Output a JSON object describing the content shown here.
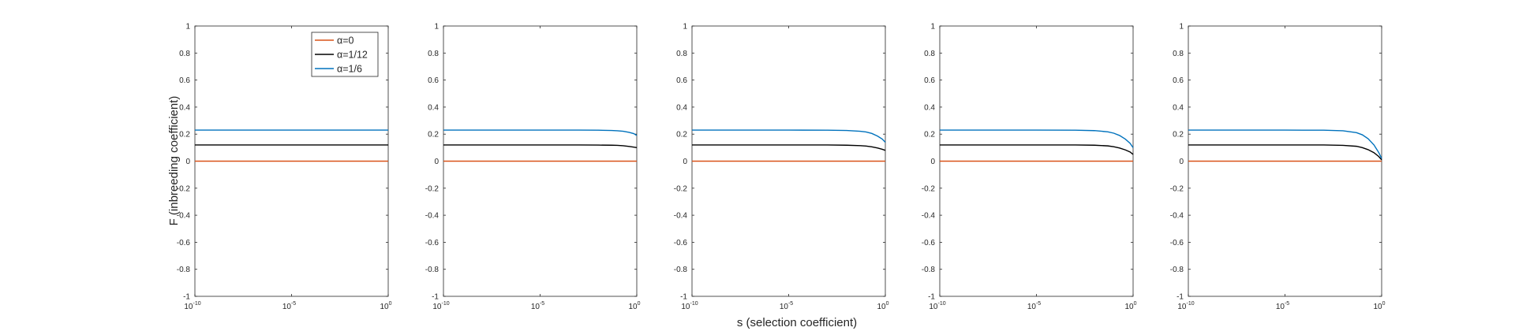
{
  "figure": {
    "xlabel": "s (selection coefficient)",
    "ylabel": "F (inbreeding coefficient)"
  },
  "colors": {
    "alpha_0": "#D95319",
    "alpha_1_12": "#000000",
    "alpha_1_6": "#0072BD"
  },
  "legend": {
    "entries": [
      "α=0",
      "α=1/12",
      "α=1/6"
    ],
    "placement": "top-right of first panel"
  },
  "chart_data": [
    {
      "type": "line",
      "xscale": "log",
      "xlim": [
        1e-10,
        1
      ],
      "ylim": [
        -1,
        1
      ],
      "xticks": [
        {
          "base": "10",
          "exp": "-10"
        },
        {
          "base": "10",
          "exp": "-5"
        },
        {
          "base": "10",
          "exp": "0"
        }
      ],
      "yticks": [
        "-1",
        "-0.8",
        "-0.6",
        "-0.4",
        "-0.2",
        "0",
        "0.2",
        "0.4",
        "0.6",
        "0.8",
        "1"
      ],
      "series": [
        {
          "name": "α=0",
          "x": [
            1e-10,
            1e-05,
            0.01,
            0.1,
            1
          ],
          "y": [
            0,
            0,
            0,
            0,
            0
          ]
        },
        {
          "name": "α=1/12",
          "x": [
            1e-10,
            1e-05,
            0.01,
            0.1,
            1
          ],
          "y": [
            0.12,
            0.12,
            0.12,
            0.12,
            0.12
          ]
        },
        {
          "name": "α=1/6",
          "x": [
            1e-10,
            1e-05,
            0.01,
            0.1,
            1
          ],
          "y": [
            0.23,
            0.23,
            0.23,
            0.23,
            0.23
          ]
        }
      ]
    },
    {
      "type": "line",
      "xscale": "log",
      "xlim": [
        1e-10,
        1
      ],
      "ylim": [
        -1,
        1
      ],
      "xticks": [
        {
          "base": "10",
          "exp": "-10"
        },
        {
          "base": "10",
          "exp": "-5"
        },
        {
          "base": "10",
          "exp": "0"
        }
      ],
      "yticks": [
        "-1",
        "-0.8",
        "-0.6",
        "-0.4",
        "-0.2",
        "0",
        "0.2",
        "0.4",
        "0.6",
        "0.8",
        "1"
      ],
      "series": [
        {
          "name": "α=0",
          "x": [
            1e-10,
            1e-05,
            0.001,
            0.01,
            0.05,
            0.1,
            0.2,
            0.4,
            0.7,
            1
          ],
          "y": [
            0,
            0,
            0,
            0,
            0,
            0,
            0,
            0,
            0,
            0
          ]
        },
        {
          "name": "α=1/12",
          "x": [
            1e-10,
            1e-05,
            0.001,
            0.01,
            0.05,
            0.1,
            0.2,
            0.4,
            0.7,
            1
          ],
          "y": [
            0.12,
            0.12,
            0.12,
            0.119,
            0.118,
            0.117,
            0.114,
            0.109,
            0.104,
            0.1
          ]
        },
        {
          "name": "α=1/6",
          "x": [
            1e-10,
            1e-05,
            0.001,
            0.01,
            0.05,
            0.1,
            0.2,
            0.4,
            0.7,
            1
          ],
          "y": [
            0.23,
            0.23,
            0.23,
            0.229,
            0.227,
            0.225,
            0.221,
            0.213,
            0.204,
            0.19
          ]
        }
      ]
    },
    {
      "type": "line",
      "xscale": "log",
      "xlim": [
        1e-10,
        1
      ],
      "ylim": [
        -1,
        1
      ],
      "xticks": [
        {
          "base": "10",
          "exp": "-10"
        },
        {
          "base": "10",
          "exp": "-5"
        },
        {
          "base": "10",
          "exp": "0"
        }
      ],
      "yticks": [
        "-1",
        "-0.8",
        "-0.6",
        "-0.4",
        "-0.2",
        "0",
        "0.2",
        "0.4",
        "0.6",
        "0.8",
        "1"
      ],
      "series": [
        {
          "name": "α=0",
          "x": [
            1e-10,
            1e-05,
            0.001,
            0.01,
            0.05,
            0.1,
            0.2,
            0.4,
            0.7,
            1
          ],
          "y": [
            0,
            0,
            0,
            0,
            0,
            0,
            0,
            0,
            0,
            0
          ]
        },
        {
          "name": "α=1/12",
          "x": [
            1e-10,
            1e-05,
            0.001,
            0.01,
            0.05,
            0.1,
            0.2,
            0.4,
            0.7,
            1
          ],
          "y": [
            0.12,
            0.12,
            0.12,
            0.118,
            0.115,
            0.112,
            0.106,
            0.097,
            0.088,
            0.08
          ]
        },
        {
          "name": "α=1/6",
          "x": [
            1e-10,
            1e-05,
            0.001,
            0.01,
            0.05,
            0.1,
            0.2,
            0.4,
            0.7,
            1
          ],
          "y": [
            0.23,
            0.23,
            0.229,
            0.227,
            0.221,
            0.216,
            0.205,
            0.185,
            0.163,
            0.14
          ]
        }
      ]
    },
    {
      "type": "line",
      "xscale": "log",
      "xlim": [
        1e-10,
        1
      ],
      "ylim": [
        -1,
        1
      ],
      "xticks": [
        {
          "base": "10",
          "exp": "-10"
        },
        {
          "base": "10",
          "exp": "-5"
        },
        {
          "base": "10",
          "exp": "0"
        }
      ],
      "yticks": [
        "-1",
        "-0.8",
        "-0.6",
        "-0.4",
        "-0.2",
        "0",
        "0.2",
        "0.4",
        "0.6",
        "0.8",
        "1"
      ],
      "series": [
        {
          "name": "α=0",
          "x": [
            1e-10,
            1e-05,
            0.001,
            0.01,
            0.05,
            0.1,
            0.2,
            0.4,
            0.7,
            1
          ],
          "y": [
            0,
            0,
            0,
            0,
            0,
            0,
            0,
            0,
            0,
            0
          ]
        },
        {
          "name": "α=1/12",
          "x": [
            1e-10,
            1e-05,
            0.001,
            0.01,
            0.05,
            0.1,
            0.2,
            0.4,
            0.7,
            1
          ],
          "y": [
            0.12,
            0.12,
            0.12,
            0.118,
            0.113,
            0.107,
            0.097,
            0.083,
            0.068,
            0.05
          ]
        },
        {
          "name": "α=1/6",
          "x": [
            1e-10,
            1e-05,
            0.001,
            0.01,
            0.05,
            0.1,
            0.2,
            0.4,
            0.7,
            1
          ],
          "y": [
            0.23,
            0.23,
            0.229,
            0.226,
            0.217,
            0.207,
            0.19,
            0.163,
            0.132,
            0.1
          ]
        }
      ]
    },
    {
      "type": "line",
      "xscale": "log",
      "xlim": [
        1e-10,
        1
      ],
      "ylim": [
        -1,
        1
      ],
      "xticks": [
        {
          "base": "10",
          "exp": "-10"
        },
        {
          "base": "10",
          "exp": "-5"
        },
        {
          "base": "10",
          "exp": "0"
        }
      ],
      "yticks": [
        "-1",
        "-0.8",
        "-0.6",
        "-0.4",
        "-0.2",
        "0",
        "0.2",
        "0.4",
        "0.6",
        "0.8",
        "1"
      ],
      "series": [
        {
          "name": "α=0",
          "x": [
            1e-10,
            1e-05,
            0.001,
            0.01,
            0.05,
            0.1,
            0.2,
            0.4,
            0.7,
            1
          ],
          "y": [
            0,
            0,
            0,
            0,
            0,
            0,
            0,
            0,
            0,
            0
          ]
        },
        {
          "name": "α=1/12",
          "x": [
            1e-10,
            1e-05,
            0.001,
            0.01,
            0.05,
            0.1,
            0.2,
            0.4,
            0.7,
            1
          ],
          "y": [
            0.12,
            0.12,
            0.12,
            0.117,
            0.11,
            0.1,
            0.085,
            0.063,
            0.035,
            0.01
          ]
        },
        {
          "name": "α=1/6",
          "x": [
            1e-10,
            1e-05,
            0.001,
            0.01,
            0.05,
            0.1,
            0.2,
            0.4,
            0.7,
            1
          ],
          "y": [
            0.23,
            0.23,
            0.229,
            0.225,
            0.211,
            0.195,
            0.166,
            0.12,
            0.065,
            0.02
          ]
        }
      ]
    }
  ]
}
